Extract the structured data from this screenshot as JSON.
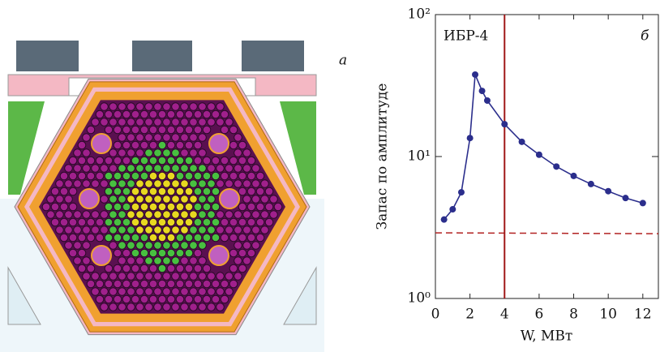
{
  "panel_labels": [
    "а",
    "б"
  ],
  "chart_data": {
    "type": "line",
    "annotation": "ИБР-4",
    "xlabel": "W, МВт",
    "ylabel": "Запас по амплитуде",
    "x": [
      0.5,
      1.0,
      1.5,
      2.0,
      2.3,
      2.7,
      3.0,
      4,
      5,
      6,
      7,
      8,
      9,
      10,
      11,
      12
    ],
    "series": [
      {
        "color": "#2b2e8c",
        "values": [
          3.6,
          4.25,
          5.6,
          13.5,
          37.8,
          29,
          24.8,
          16.9,
          12.7,
          10.3,
          8.5,
          7.3,
          6.4,
          5.7,
          5.1,
          4.7
        ]
      }
    ],
    "reference_line": {
      "color": "#b22222",
      "x": [
        0,
        12.9
      ],
      "values": [
        2.9,
        2.86
      ]
    },
    "vline": {
      "color": "#a01818",
      "x": 4
    },
    "xlim": [
      0,
      12.9
    ],
    "xticks": [
      0,
      2,
      4,
      6,
      8,
      10,
      12
    ],
    "ylim": [
      1,
      100
    ],
    "log_y": true,
    "yticks": [
      {
        "value": 1,
        "label": "10⁰"
      },
      {
        "value": 10,
        "label": "10¹"
      },
      {
        "value": 100,
        "label": "10²"
      }
    ]
  }
}
